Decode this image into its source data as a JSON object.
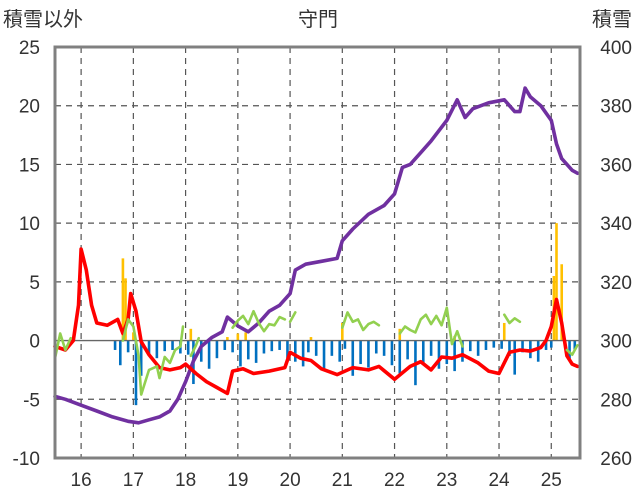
{
  "chart_data": {
    "type": "line",
    "title": "守門",
    "ylabel_left": "積雪以外",
    "ylabel_right": "積雪",
    "x_ticks": [
      "16",
      "17",
      "18",
      "19",
      "20",
      "21",
      "22",
      "23",
      "24",
      "25"
    ],
    "y_left_ticks": [
      "25",
      "20",
      "15",
      "10",
      "5",
      "0",
      "-5",
      "-10"
    ],
    "y_right_ticks": [
      "400",
      "380",
      "360",
      "340",
      "320",
      "300",
      "280",
      "260"
    ],
    "x_range": [
      15.5,
      25.55
    ],
    "y_left_range": [
      -10,
      25
    ],
    "y_right_range": [
      260,
      400
    ],
    "grid": true,
    "colors": {
      "snow_depth": "#7030a0",
      "temperature": "#ff0000",
      "wind": "#92d050",
      "snowfall_bars": "#ffc000",
      "precip_bars": "#0070c0",
      "grid": "#555555",
      "frame": "#808080"
    },
    "series": [
      {
        "axis": "right",
        "key": "snow_depth",
        "points": [
          [
            15.5,
            281
          ],
          [
            15.7,
            280
          ],
          [
            16.0,
            278
          ],
          [
            16.3,
            276
          ],
          [
            16.6,
            274
          ],
          [
            16.9,
            272.5
          ],
          [
            17.1,
            272
          ],
          [
            17.3,
            273
          ],
          [
            17.5,
            274
          ],
          [
            17.7,
            276
          ],
          [
            17.85,
            280
          ],
          [
            18.0,
            286
          ],
          [
            18.15,
            293
          ],
          [
            18.3,
            298
          ],
          [
            18.5,
            301
          ],
          [
            18.7,
            303
          ],
          [
            18.8,
            308
          ],
          [
            19.0,
            305
          ],
          [
            19.2,
            303
          ],
          [
            19.4,
            306
          ],
          [
            19.6,
            310
          ],
          [
            19.8,
            312
          ],
          [
            20.0,
            316
          ],
          [
            20.1,
            324
          ],
          [
            20.3,
            326
          ],
          [
            20.6,
            327
          ],
          [
            20.9,
            328
          ],
          [
            21.0,
            334
          ],
          [
            21.2,
            338
          ],
          [
            21.5,
            343
          ],
          [
            21.8,
            346
          ],
          [
            22.0,
            350
          ],
          [
            22.15,
            359
          ],
          [
            22.3,
            360
          ],
          [
            22.5,
            364
          ],
          [
            22.7,
            368
          ],
          [
            23.0,
            375
          ],
          [
            23.2,
            382
          ],
          [
            23.35,
            376
          ],
          [
            23.5,
            379
          ],
          [
            23.8,
            381
          ],
          [
            24.1,
            382
          ],
          [
            24.3,
            378
          ],
          [
            24.4,
            378
          ],
          [
            24.5,
            386
          ],
          [
            24.6,
            383
          ],
          [
            24.8,
            380
          ],
          [
            25.0,
            375
          ],
          [
            25.1,
            367
          ],
          [
            25.2,
            362
          ],
          [
            25.4,
            358
          ],
          [
            25.5,
            357
          ]
        ]
      },
      {
        "axis": "left",
        "key": "temperature",
        "points": [
          [
            15.5,
            -0.5
          ],
          [
            15.7,
            -0.8
          ],
          [
            15.85,
            0
          ],
          [
            15.95,
            3
          ],
          [
            16.0,
            7.8
          ],
          [
            16.1,
            6
          ],
          [
            16.2,
            3
          ],
          [
            16.3,
            1.5
          ],
          [
            16.5,
            1.3
          ],
          [
            16.7,
            1.8
          ],
          [
            16.8,
            0.6
          ],
          [
            16.9,
            1.8
          ],
          [
            16.95,
            4
          ],
          [
            17.05,
            2.5
          ],
          [
            17.15,
            -0.1
          ],
          [
            17.3,
            -1.2
          ],
          [
            17.5,
            -2.3
          ],
          [
            17.7,
            -2.5
          ],
          [
            17.9,
            -2.3
          ],
          [
            18.0,
            -2.0
          ],
          [
            18.2,
            -2.8
          ],
          [
            18.4,
            -3.5
          ],
          [
            18.6,
            -4.0
          ],
          [
            18.8,
            -4.5
          ],
          [
            18.9,
            -2.6
          ],
          [
            19.1,
            -2.4
          ],
          [
            19.3,
            -2.8
          ],
          [
            19.6,
            -2.6
          ],
          [
            19.9,
            -2.3
          ],
          [
            20.0,
            -1.0
          ],
          [
            20.2,
            -1.5
          ],
          [
            20.4,
            -1.7
          ],
          [
            20.6,
            -2.4
          ],
          [
            20.9,
            -2.9
          ],
          [
            21.2,
            -2.3
          ],
          [
            21.5,
            -2.5
          ],
          [
            21.7,
            -2.2
          ],
          [
            22.0,
            -3.3
          ],
          [
            22.3,
            -2.2
          ],
          [
            22.5,
            -1.8
          ],
          [
            22.7,
            -2.5
          ],
          [
            22.9,
            -1.4
          ],
          [
            23.1,
            -1.5
          ],
          [
            23.3,
            -1.2
          ],
          [
            23.6,
            -1.9
          ],
          [
            23.8,
            -2.6
          ],
          [
            24.0,
            -2.8
          ],
          [
            24.2,
            -1.0
          ],
          [
            24.4,
            -0.8
          ],
          [
            24.6,
            -0.9
          ],
          [
            24.8,
            -0.6
          ],
          [
            24.9,
            0.0
          ],
          [
            25.0,
            1.2
          ],
          [
            25.1,
            3.5
          ],
          [
            25.2,
            1.5
          ],
          [
            25.3,
            -1.3
          ],
          [
            25.4,
            -2.0
          ],
          [
            25.5,
            -2.2
          ]
        ]
      },
      {
        "axis": "left",
        "key": "wind",
        "segments": [
          [
            [
              15.5,
              -1.5
            ],
            [
              15.6,
              0.6
            ],
            [
              15.7,
              -0.8
            ],
            [
              15.8,
              0.2
            ]
          ],
          [
            [
              16.8,
              0.0
            ],
            [
              16.9,
              1.8
            ],
            [
              17.0,
              1.2
            ],
            [
              17.1,
              -1.3
            ],
            [
              17.15,
              -4.6
            ],
            [
              17.3,
              -2.5
            ],
            [
              17.45,
              -2.2
            ],
            [
              17.5,
              -3.2
            ],
            [
              17.6,
              -1.4
            ],
            [
              17.7,
              -1.9
            ],
            [
              17.8,
              -0.8
            ],
            [
              17.9,
              -0.5
            ],
            [
              17.95,
              1.2
            ]
          ],
          [
            [
              18.1,
              -1.3
            ],
            [
              18.2,
              -0.4
            ],
            [
              18.25,
              0.2
            ]
          ],
          [
            [
              18.9,
              1.1
            ],
            [
              19.0,
              1.7
            ],
            [
              19.1,
              2.1
            ],
            [
              19.2,
              1.4
            ],
            [
              19.3,
              2.5
            ],
            [
              19.4,
              1.5
            ],
            [
              19.5,
              0.8
            ],
            [
              19.6,
              1.4
            ],
            [
              19.7,
              1.3
            ],
            [
              19.8,
              2.0
            ],
            [
              19.9,
              1.8
            ]
          ],
          [
            [
              20.0,
              1.6
            ],
            [
              20.1,
              2.4
            ]
          ],
          [
            [
              21.0,
              1.1
            ],
            [
              21.1,
              2.4
            ],
            [
              21.2,
              1.6
            ],
            [
              21.3,
              1.8
            ],
            [
              21.4,
              0.9
            ],
            [
              21.5,
              1.4
            ],
            [
              21.6,
              1.6
            ],
            [
              21.7,
              1.3
            ]
          ],
          [
            [
              22.1,
              0.6
            ],
            [
              22.2,
              1.2
            ],
            [
              22.3,
              0.9
            ],
            [
              22.4,
              0.7
            ],
            [
              22.5,
              1.8
            ],
            [
              22.6,
              2.2
            ],
            [
              22.7,
              1.4
            ],
            [
              22.8,
              2.1
            ],
            [
              22.9,
              1.3
            ],
            [
              23.0,
              2.8
            ],
            [
              23.1,
              -0.3
            ],
            [
              23.2,
              0.8
            ],
            [
              23.3,
              -0.5
            ]
          ],
          [
            [
              24.1,
              2.2
            ],
            [
              24.2,
              1.5
            ],
            [
              24.3,
              1.9
            ],
            [
              24.4,
              1.6
            ]
          ],
          [
            [
              25.3,
              -0.8
            ],
            [
              25.4,
              -1.2
            ],
            [
              25.5,
              -0.4
            ]
          ]
        ]
      }
    ],
    "bars": [
      {
        "axis": "left",
        "key": "snowfall_bars",
        "items": [
          [
            16.8,
            7.0
          ],
          [
            16.85,
            5.3
          ],
          [
            17.0,
            0.7
          ],
          [
            18.1,
            1.0
          ],
          [
            18.8,
            0.3
          ],
          [
            19.0,
            0.6
          ],
          [
            19.15,
            0.7
          ],
          [
            20.4,
            0.3
          ],
          [
            21.0,
            1.5
          ],
          [
            22.1,
            1.0
          ],
          [
            23.15,
            0.4
          ],
          [
            24.1,
            1.5
          ],
          [
            25.05,
            5.5
          ],
          [
            25.1,
            10.0
          ],
          [
            25.2,
            6.5
          ]
        ]
      },
      {
        "axis": "left",
        "key": "precip_bars",
        "items": [
          [
            16.65,
            -0.8
          ],
          [
            16.75,
            -2.1
          ],
          [
            16.9,
            -1.0
          ],
          [
            17.05,
            -5.5
          ],
          [
            17.15,
            -3.0
          ],
          [
            17.3,
            -1.2
          ],
          [
            17.45,
            -1.5
          ],
          [
            17.6,
            -0.9
          ],
          [
            17.75,
            -0.8
          ],
          [
            17.9,
            -1.1
          ],
          [
            18.05,
            -1.2
          ],
          [
            18.15,
            -3.7
          ],
          [
            18.3,
            -1.8
          ],
          [
            18.45,
            -2.4
          ],
          [
            18.6,
            -1.5
          ],
          [
            18.75,
            -0.8
          ],
          [
            18.9,
            -1.0
          ],
          [
            19.05,
            -2.2
          ],
          [
            19.2,
            -1.6
          ],
          [
            19.35,
            -1.9
          ],
          [
            19.5,
            -1.1
          ],
          [
            19.65,
            -0.9
          ],
          [
            19.8,
            -0.8
          ],
          [
            19.95,
            -1.5
          ],
          [
            20.1,
            -1.8
          ],
          [
            20.25,
            -2.2
          ],
          [
            20.35,
            -1.0
          ],
          [
            20.5,
            -1.3
          ],
          [
            20.65,
            -2.5
          ],
          [
            20.8,
            -1.3
          ],
          [
            20.95,
            -1.8
          ],
          [
            21.05,
            -0.7
          ],
          [
            21.2,
            -3.0
          ],
          [
            21.35,
            -2.0
          ],
          [
            21.5,
            -2.3
          ],
          [
            21.65,
            -1.1
          ],
          [
            21.8,
            -1.3
          ],
          [
            21.95,
            -2.1
          ],
          [
            22.1,
            -2.8
          ],
          [
            22.25,
            -1.6
          ],
          [
            22.4,
            -3.8
          ],
          [
            22.55,
            -1.9
          ],
          [
            22.7,
            -1.3
          ],
          [
            22.85,
            -2.4
          ],
          [
            23.0,
            -2.0
          ],
          [
            23.15,
            -2.6
          ],
          [
            23.3,
            -1.8
          ],
          [
            23.45,
            -0.9
          ],
          [
            23.6,
            -1.3
          ],
          [
            23.75,
            -0.8
          ],
          [
            23.9,
            -0.6
          ],
          [
            24.05,
            -0.7
          ],
          [
            24.2,
            -1.3
          ],
          [
            24.3,
            -2.9
          ],
          [
            24.45,
            -1.0
          ],
          [
            24.6,
            -1.5
          ],
          [
            24.75,
            -1.8
          ],
          [
            24.9,
            -0.8
          ],
          [
            25.0,
            -0.6
          ],
          [
            25.35,
            -1.7
          ],
          [
            25.45,
            -0.8
          ]
        ]
      }
    ]
  }
}
